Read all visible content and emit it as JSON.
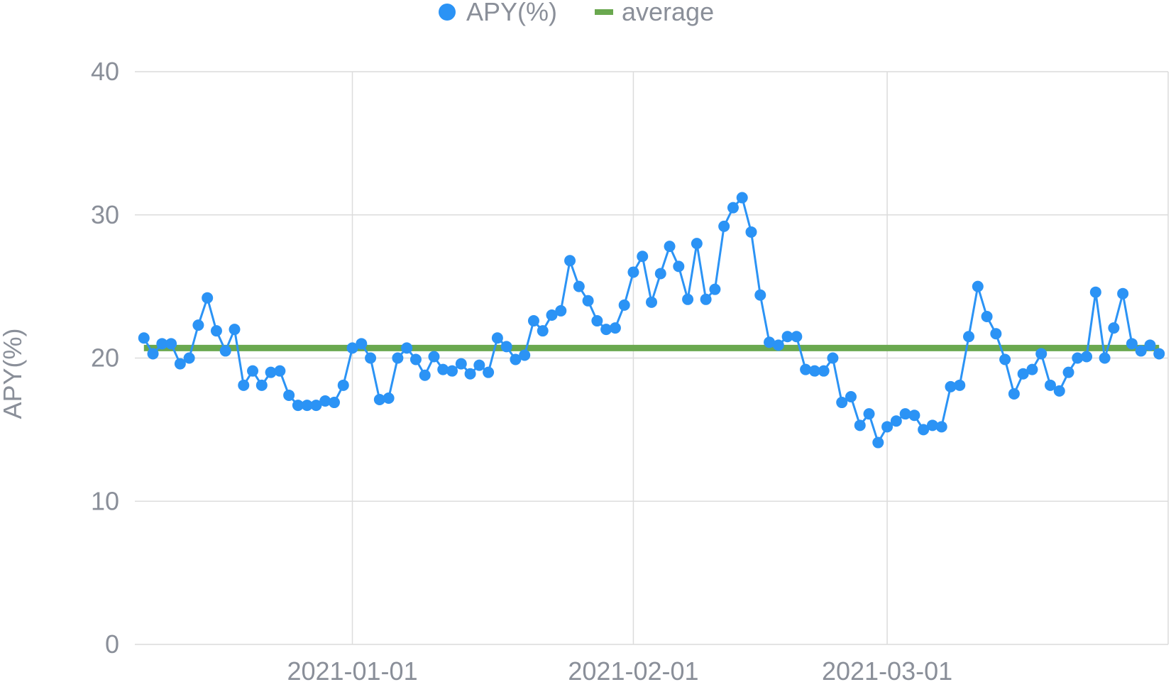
{
  "chart_data": {
    "type": "line",
    "ylabel": "APY(%)",
    "xlabel": "",
    "ylim": [
      0,
      40
    ],
    "yticks": [
      "0",
      "10",
      "20",
      "30",
      "40"
    ],
    "xticks": [
      "2021-01-01",
      "2021-02-01",
      "2021-03-01"
    ],
    "xlim": [
      "2020-12-08",
      "2021-04-01"
    ],
    "grid": true,
    "legend_position": "top-center",
    "series": [
      {
        "name": "APY(%)",
        "style": "line-with-markers",
        "color": "#2b93f5",
        "x_start": "2020-12-09",
        "x_step_days": 1,
        "values": [
          21.4,
          20.3,
          21.0,
          21.0,
          19.6,
          20.0,
          22.3,
          24.2,
          21.9,
          20.5,
          22.0,
          18.1,
          19.1,
          18.1,
          19.0,
          19.1,
          17.4,
          16.7,
          16.7,
          16.7,
          17.0,
          16.9,
          18.1,
          20.7,
          21.0,
          20.0,
          17.1,
          17.2,
          20.0,
          20.7,
          19.9,
          18.8,
          20.1,
          19.2,
          19.1,
          19.6,
          18.9,
          19.5,
          19.0,
          21.4,
          20.8,
          19.9,
          20.2,
          22.6,
          21.9,
          23.0,
          23.3,
          26.8,
          25.0,
          24.0,
          22.6,
          22.0,
          22.1,
          23.7,
          26.0,
          27.1,
          23.9,
          25.9,
          27.8,
          26.4,
          24.1,
          28.0,
          24.1,
          24.8,
          29.2,
          30.5,
          31.2,
          28.8,
          24.4,
          21.1,
          20.9,
          21.5,
          21.5,
          19.2,
          19.1,
          19.1,
          20.0,
          16.9,
          17.3,
          15.3,
          16.1,
          14.1,
          15.2,
          15.6,
          16.1,
          16.0,
          15.0,
          15.3,
          15.2,
          18.0,
          18.1,
          21.5,
          25.0,
          22.9,
          21.7,
          19.9,
          17.5,
          18.9,
          19.2,
          20.3,
          18.1,
          17.7,
          19.0,
          20.0,
          20.1,
          24.6,
          20.0,
          22.1,
          24.5,
          21.0,
          20.5,
          20.9,
          20.3
        ]
      },
      {
        "name": "average",
        "style": "line",
        "color": "#6aa84f",
        "x_start": "2020-12-09",
        "x_end": "2021-03-31",
        "values": [
          20.7,
          20.7
        ]
      }
    ]
  }
}
